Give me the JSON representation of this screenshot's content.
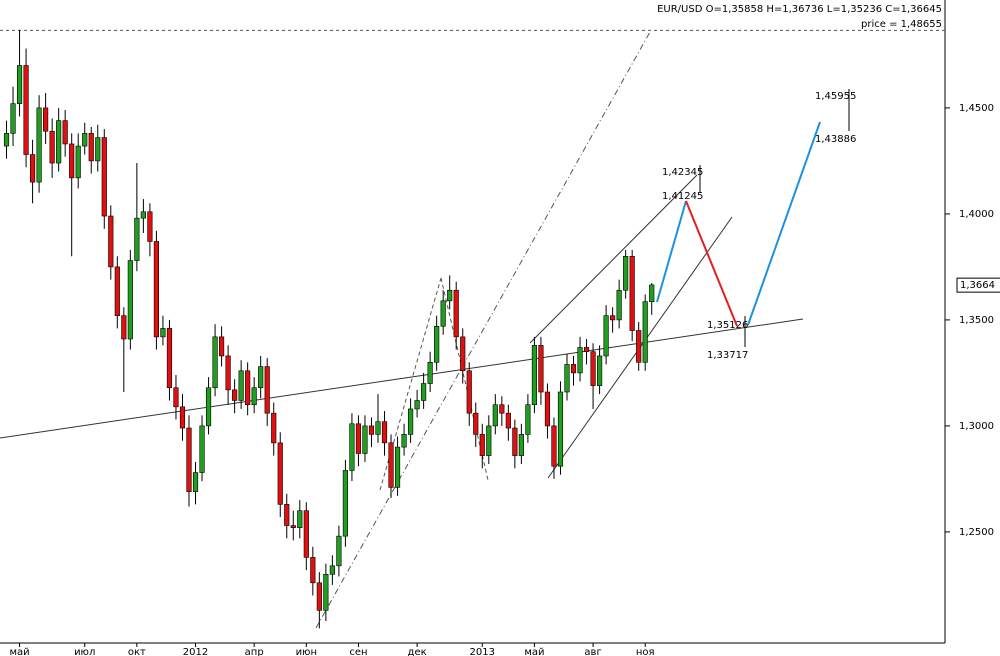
{
  "chart_data": {
    "type": "candlestick",
    "header": "EUR/USD O=1,35858 H=1,36736 L=1,35236 C=1,36645",
    "price_line": {
      "value": 1.48655,
      "label": "price = 1,48655"
    },
    "last_price": {
      "value": 1.3664,
      "label": "1,3664"
    },
    "annotations": [
      "1,42345",
      "1,41245",
      "1,45955",
      "1,43886",
      "1,35126",
      "1,33717"
    ],
    "up_color": "#1f9e1f",
    "down_color": "#e01010",
    "xlim": [
      -1,
      144
    ],
    "ylim": [
      1.1976,
      1.5009
    ],
    "yticks": [
      {
        "value": 1.25,
        "label": "1,2500"
      },
      {
        "value": 1.3,
        "label": "1,3000"
      },
      {
        "value": 1.35,
        "label": "1,3500"
      },
      {
        "value": 1.4,
        "label": "1,4000"
      },
      {
        "value": 1.45,
        "label": "1,4500"
      }
    ],
    "xticks": [
      {
        "value": 2,
        "label": "май"
      },
      {
        "value": 12,
        "label": "июл"
      },
      {
        "value": 20,
        "label": "окт"
      },
      {
        "value": 29,
        "label": "2012"
      },
      {
        "value": 38,
        "label": "апр"
      },
      {
        "value": 46,
        "label": "июн"
      },
      {
        "value": 54,
        "label": "сен"
      },
      {
        "value": 63,
        "label": "дек"
      },
      {
        "value": 73,
        "label": "2013"
      },
      {
        "value": 81,
        "label": "май"
      },
      {
        "value": 90,
        "label": "авг"
      },
      {
        "value": 98,
        "label": "ноя"
      }
    ],
    "ohlc": [
      [
        1.432,
        1.444,
        1.426,
        1.438
      ],
      [
        1.438,
        1.46,
        1.432,
        1.452
      ],
      [
        1.452,
        1.4868,
        1.446,
        1.47
      ],
      [
        1.47,
        1.478,
        1.422,
        1.428
      ],
      [
        1.428,
        1.435,
        1.405,
        1.415
      ],
      [
        1.415,
        1.456,
        1.41,
        1.45
      ],
      [
        1.45,
        1.457,
        1.433,
        1.439
      ],
      [
        1.439,
        1.445,
        1.417,
        1.424
      ],
      [
        1.424,
        1.45,
        1.42,
        1.444
      ],
      [
        1.444,
        1.449,
        1.427,
        1.433
      ],
      [
        1.433,
        1.438,
        1.38,
        1.417
      ],
      [
        1.417,
        1.438,
        1.412,
        1.432
      ],
      [
        1.432,
        1.443,
        1.428,
        1.438
      ],
      [
        1.438,
        1.441,
        1.419,
        1.425
      ],
      [
        1.425,
        1.442,
        1.42,
        1.436
      ],
      [
        1.436,
        1.44,
        1.393,
        1.399
      ],
      [
        1.399,
        1.404,
        1.369,
        1.375
      ],
      [
        1.375,
        1.38,
        1.346,
        1.352
      ],
      [
        1.352,
        1.356,
        1.316,
        1.341
      ],
      [
        1.341,
        1.383,
        1.336,
        1.378
      ],
      [
        1.378,
        1.424,
        1.373,
        1.398
      ],
      [
        1.398,
        1.407,
        1.391,
        1.401
      ],
      [
        1.401,
        1.405,
        1.38,
        1.387
      ],
      [
        1.387,
        1.392,
        1.336,
        1.342
      ],
      [
        1.342,
        1.352,
        1.338,
        1.346
      ],
      [
        1.346,
        1.35,
        1.312,
        1.318
      ],
      [
        1.318,
        1.324,
        1.303,
        1.309
      ],
      [
        1.309,
        1.315,
        1.293,
        1.299
      ],
      [
        1.299,
        1.305,
        1.262,
        1.269
      ],
      [
        1.269,
        1.283,
        1.263,
        1.278
      ],
      [
        1.278,
        1.305,
        1.274,
        1.3
      ],
      [
        1.3,
        1.323,
        1.296,
        1.318
      ],
      [
        1.318,
        1.348,
        1.314,
        1.342
      ],
      [
        1.342,
        1.347,
        1.328,
        1.333
      ],
      [
        1.333,
        1.338,
        1.31,
        1.317
      ],
      [
        1.317,
        1.322,
        1.306,
        1.312
      ],
      [
        1.312,
        1.331,
        1.308,
        1.326
      ],
      [
        1.326,
        1.33,
        1.305,
        1.31
      ],
      [
        1.31,
        1.323,
        1.306,
        1.318
      ],
      [
        1.318,
        1.333,
        1.313,
        1.328
      ],
      [
        1.328,
        1.332,
        1.3,
        1.306
      ],
      [
        1.306,
        1.311,
        1.286,
        1.292
      ],
      [
        1.292,
        1.297,
        1.257,
        1.263
      ],
      [
        1.263,
        1.268,
        1.247,
        1.253
      ],
      [
        1.253,
        1.26,
        1.246,
        1.252
      ],
      [
        1.252,
        1.265,
        1.247,
        1.26
      ],
      [
        1.26,
        1.264,
        1.232,
        1.238
      ],
      [
        1.238,
        1.243,
        1.22,
        1.226
      ],
      [
        1.226,
        1.231,
        1.2045,
        1.213
      ],
      [
        1.213,
        1.235,
        1.208,
        1.23
      ],
      [
        1.23,
        1.239,
        1.225,
        1.234
      ],
      [
        1.234,
        1.253,
        1.229,
        1.248
      ],
      [
        1.248,
        1.284,
        1.243,
        1.279
      ],
      [
        1.279,
        1.306,
        1.274,
        1.301
      ],
      [
        1.301,
        1.305,
        1.281,
        1.287
      ],
      [
        1.287,
        1.305,
        1.283,
        1.3
      ],
      [
        1.3,
        1.304,
        1.29,
        1.296
      ],
      [
        1.296,
        1.315,
        1.292,
        1.302
      ],
      [
        1.302,
        1.307,
        1.286,
        1.292
      ],
      [
        1.292,
        1.296,
        1.266,
        1.271
      ],
      [
        1.271,
        1.295,
        1.267,
        1.29
      ],
      [
        1.29,
        1.301,
        1.286,
        1.296
      ],
      [
        1.296,
        1.313,
        1.292,
        1.308
      ],
      [
        1.308,
        1.317,
        1.304,
        1.312
      ],
      [
        1.312,
        1.325,
        1.308,
        1.32
      ],
      [
        1.32,
        1.335,
        1.316,
        1.33
      ],
      [
        1.33,
        1.352,
        1.326,
        1.347
      ],
      [
        1.347,
        1.364,
        1.343,
        1.359
      ],
      [
        1.359,
        1.371,
        1.355,
        1.364
      ],
      [
        1.364,
        1.368,
        1.336,
        1.342
      ],
      [
        1.342,
        1.346,
        1.32,
        1.326
      ],
      [
        1.326,
        1.33,
        1.3,
        1.306
      ],
      [
        1.306,
        1.311,
        1.29,
        1.296
      ],
      [
        1.296,
        1.301,
        1.28,
        1.286
      ],
      [
        1.286,
        1.305,
        1.282,
        1.3
      ],
      [
        1.3,
        1.315,
        1.296,
        1.31
      ],
      [
        1.31,
        1.314,
        1.3,
        1.306
      ],
      [
        1.306,
        1.31,
        1.293,
        1.299
      ],
      [
        1.299,
        1.303,
        1.28,
        1.286
      ],
      [
        1.286,
        1.301,
        1.282,
        1.296
      ],
      [
        1.296,
        1.315,
        1.292,
        1.31
      ],
      [
        1.31,
        1.342,
        1.306,
        1.338
      ],
      [
        1.338,
        1.342,
        1.31,
        1.316
      ],
      [
        1.316,
        1.32,
        1.294,
        1.3
      ],
      [
        1.3,
        1.304,
        1.275,
        1.281
      ],
      [
        1.281,
        1.321,
        1.277,
        1.316
      ],
      [
        1.316,
        1.334,
        1.312,
        1.329
      ],
      [
        1.329,
        1.333,
        1.319,
        1.325
      ],
      [
        1.325,
        1.342,
        1.321,
        1.337
      ],
      [
        1.337,
        1.341,
        1.329,
        1.335
      ],
      [
        1.335,
        1.339,
        1.308,
        1.319
      ],
      [
        1.319,
        1.338,
        1.315,
        1.333
      ],
      [
        1.333,
        1.357,
        1.329,
        1.352
      ],
      [
        1.352,
        1.356,
        1.344,
        1.35
      ],
      [
        1.35,
        1.369,
        1.346,
        1.364
      ],
      [
        1.364,
        1.383,
        1.36,
        1.38
      ],
      [
        1.38,
        1.383,
        1.34,
        1.345
      ],
      [
        1.345,
        1.349,
        1.326,
        1.33
      ],
      [
        1.33,
        1.362,
        1.326,
        1.3586
      ],
      [
        1.3586,
        1.3674,
        1.3524,
        1.3665
      ]
    ]
  }
}
